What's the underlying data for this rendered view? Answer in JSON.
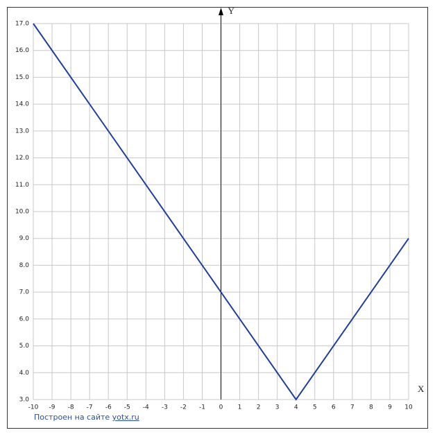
{
  "chart_data": {
    "type": "line",
    "x": [
      -10,
      4,
      10
    ],
    "series": [
      {
        "color": "#1f3f9f",
        "values": [
          17,
          3,
          9
        ]
      }
    ],
    "xlim": [
      -10,
      10
    ],
    "xticks": [
      -10,
      -9,
      -8,
      -7,
      -6,
      -5,
      -4,
      -3,
      -2,
      -1,
      0,
      1,
      2,
      3,
      4,
      5,
      6,
      7,
      8,
      9,
      10
    ],
    "ylim": [
      3,
      17
    ],
    "yticks": [
      {
        "value": 3,
        "label": "3.0"
      },
      {
        "value": 4,
        "label": "4.0"
      },
      {
        "value": 5,
        "label": "5.0"
      },
      {
        "value": 6,
        "label": "6.0"
      },
      {
        "value": 7,
        "label": "7.0"
      },
      {
        "value": 8,
        "label": "8.0"
      },
      {
        "value": 9,
        "label": "9.0"
      },
      {
        "value": 10,
        "label": "10.0"
      },
      {
        "value": 11,
        "label": "11.0"
      },
      {
        "value": 12,
        "label": "12.0"
      },
      {
        "value": 13,
        "label": "13.0"
      },
      {
        "value": 14,
        "label": "14.0"
      },
      {
        "value": 15,
        "label": "15.0"
      },
      {
        "value": 16,
        "label": "16.0"
      },
      {
        "value": 17,
        "label": "17.0"
      }
    ],
    "x_label": "X",
    "y_label": "Y",
    "grid": true
  },
  "footer": {
    "text": "Построен на сайте",
    "link": "yotx.ru"
  }
}
